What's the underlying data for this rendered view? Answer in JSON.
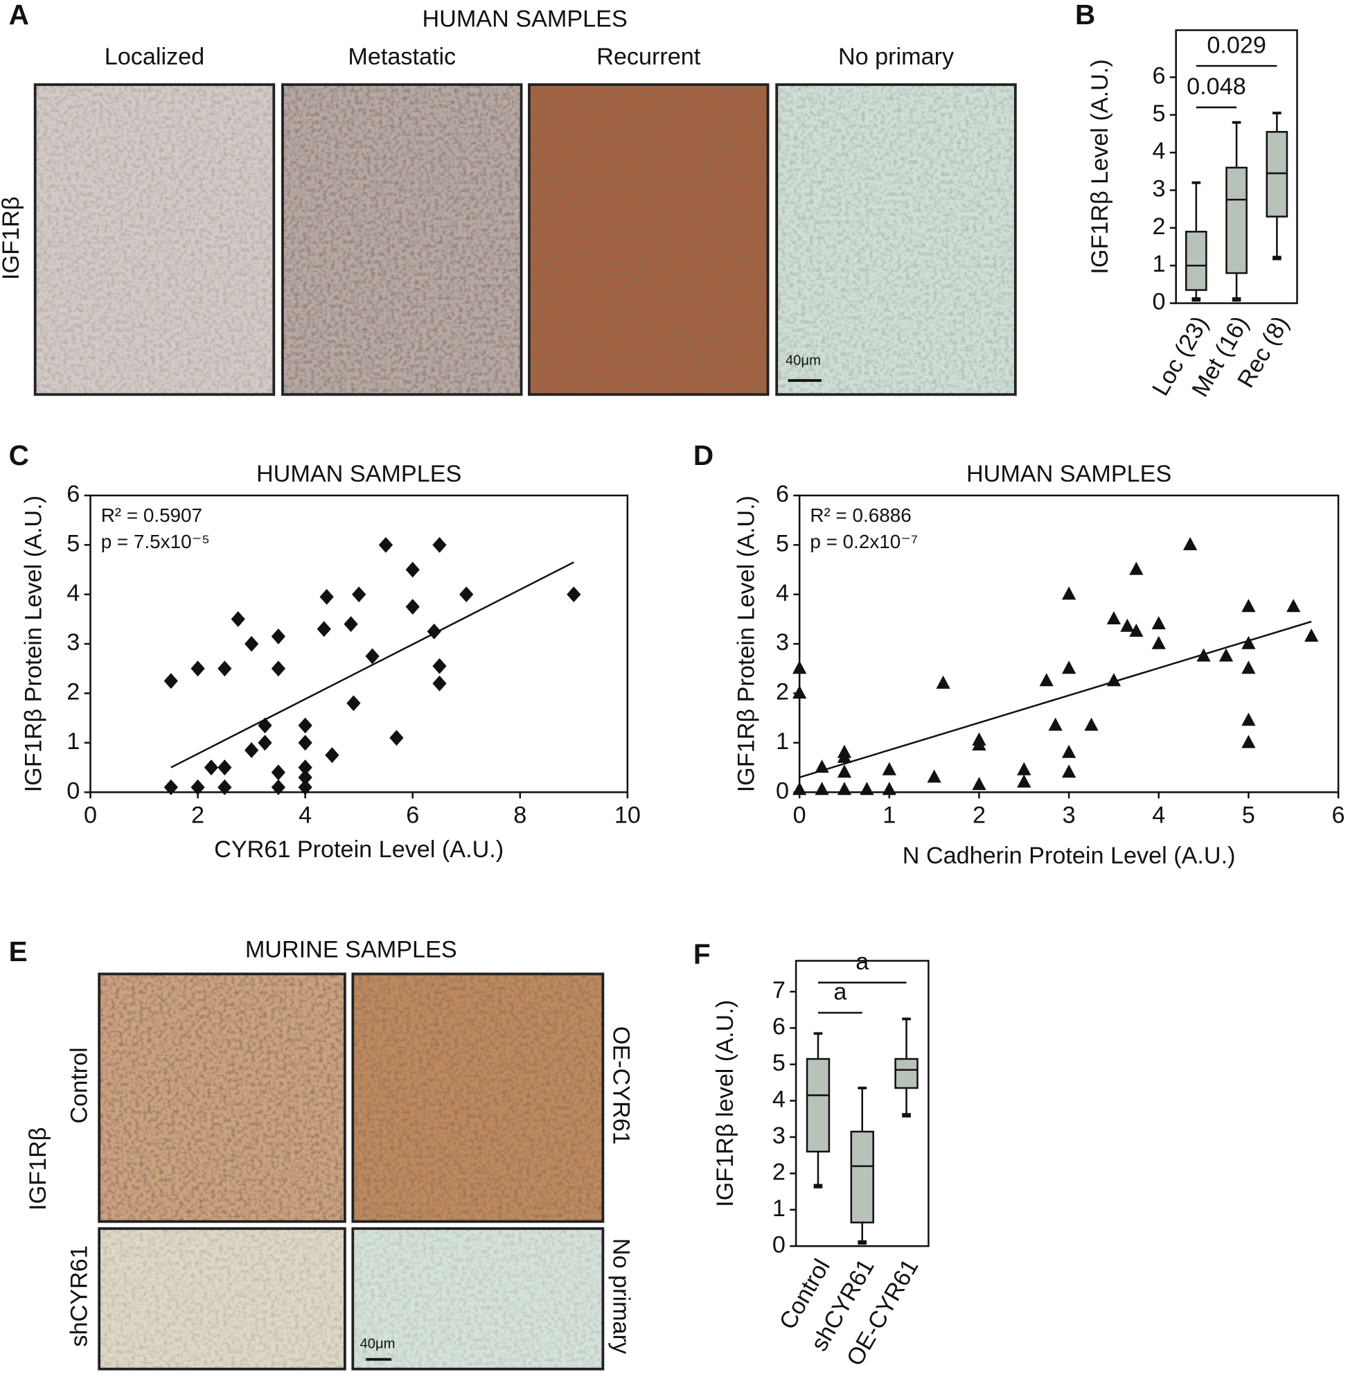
{
  "panel_A": {
    "letter": "A",
    "title": "HUMAN SAMPLES",
    "row_label": "IGF1Rβ",
    "images": [
      "Localized",
      "Metastatic",
      "Recurrent",
      "No primary"
    ],
    "scale_bar": "40μm"
  },
  "panel_E": {
    "letter": "E",
    "title": "MURINE SAMPLES",
    "row_label": "IGF1Rβ",
    "images": [
      "Control",
      "OE-CYR61",
      "shCYR61",
      "No primary"
    ],
    "scale_bar": "40μm"
  },
  "chart_data": [
    {
      "type": "box",
      "letter": "B",
      "ylabel": "IGF1Rβ Level  (A.U.)",
      "color": "#b8c2ba",
      "categories": [
        "Loc (23)",
        "Met (16)",
        "Rec (8)"
      ],
      "values": [
        [
          0.1,
          0.35,
          1.0,
          1.9,
          3.2
        ],
        [
          0.1,
          0.8,
          2.75,
          3.6,
          4.8
        ],
        [
          1.2,
          2.3,
          3.45,
          4.55,
          5.05
        ]
      ],
      "ylim": [
        0,
        7.25
      ],
      "yticks": [
        0,
        1,
        2,
        3,
        4,
        5,
        6
      ],
      "brackets": [
        {
          "from": 0,
          "to": 1,
          "y": 5.2,
          "label": "0.048"
        },
        {
          "from": 0,
          "to": 2,
          "y": 6.3,
          "label": "0.029"
        }
      ]
    },
    {
      "type": "scatter",
      "letter": "C",
      "title": "HUMAN SAMPLES",
      "xlabel": "CYR61 Protein Level (A.U.)",
      "ylabel": "IGF1Rβ Protein Level (A.U.)",
      "marker": "diamond",
      "color": "#111111",
      "annotations": [
        "R² = 0.5907",
        "p = 7.5x10⁻⁵"
      ],
      "x": [
        1.5,
        2,
        2.5,
        2.75,
        3,
        3.5,
        3.5,
        1.5,
        2,
        2.25,
        2.5,
        2.5,
        3,
        3.25,
        3.25,
        3.5,
        3.5,
        4,
        4,
        4,
        4,
        4,
        4.5,
        4.35,
        4.4,
        4.85,
        5,
        4.9,
        5.25,
        5.5,
        6,
        6,
        6.5,
        6.4,
        6.5,
        6.5,
        7,
        5.7,
        9
      ],
      "values": [
        2.25,
        2.5,
        2.5,
        3.5,
        3,
        3.15,
        2.5,
        0.1,
        0.1,
        0.5,
        0.5,
        0.1,
        0.85,
        1.0,
        1.35,
        0.4,
        0.1,
        1.35,
        1.0,
        0.5,
        0.3,
        0.1,
        0.75,
        3.3,
        3.95,
        3.4,
        4.0,
        1.8,
        2.75,
        5.0,
        4.5,
        3.75,
        5.0,
        3.25,
        2.55,
        2.2,
        4.0,
        1.1,
        4.0
      ],
      "trendline": {
        "x": [
          1.5,
          9
        ],
        "values": [
          0.5,
          4.65
        ]
      },
      "xlim": [
        0,
        10
      ],
      "xticks": [
        0,
        2,
        4,
        6,
        8,
        10
      ],
      "ylim": [
        0,
        6
      ],
      "yticks": [
        0,
        1,
        2,
        3,
        4,
        5,
        6
      ]
    },
    {
      "type": "scatter",
      "letter": "D",
      "title": "HUMAN SAMPLES",
      "xlabel": "N Cadherin Protein Level (A.U.)",
      "ylabel": "IGF1Rβ Protein Level (A.U.)",
      "marker": "triangle",
      "color": "#111111",
      "annotations": [
        "R² = 0.6886",
        "p = 0.2x10⁻⁷"
      ],
      "x": [
        0,
        0,
        0,
        0.25,
        0.25,
        0.5,
        0.5,
        0.5,
        0.5,
        0.75,
        1,
        1,
        1.5,
        1.6,
        2,
        2,
        2,
        2.5,
        2.5,
        2.75,
        2.85,
        3,
        3,
        3,
        3,
        3.25,
        3.5,
        3.5,
        3.65,
        3.75,
        3.75,
        4,
        4,
        4.35,
        4.5,
        4.75,
        5,
        5,
        5,
        5,
        5,
        5.5,
        5.7
      ],
      "values": [
        2.5,
        2.0,
        0.05,
        0.5,
        0.05,
        0.8,
        0.7,
        0.4,
        0.05,
        0.05,
        0.45,
        0.05,
        0.3,
        2.2,
        1.05,
        0.95,
        0.15,
        0.45,
        0.2,
        2.25,
        1.35,
        4.0,
        2.5,
        0.8,
        0.4,
        1.35,
        3.5,
        2.25,
        3.35,
        4.5,
        3.25,
        3.4,
        3.0,
        5.0,
        2.75,
        2.75,
        3.75,
        3.0,
        2.5,
        1.45,
        1.0,
        3.75,
        3.15
      ],
      "trendline": {
        "x": [
          0,
          5.7
        ],
        "values": [
          0.3,
          3.45
        ]
      },
      "xlim": [
        0,
        6
      ],
      "xticks": [
        0,
        1,
        2,
        3,
        4,
        5,
        6
      ],
      "ylim": [
        0,
        6
      ],
      "yticks": [
        0,
        1,
        2,
        3,
        4,
        5,
        6
      ]
    },
    {
      "type": "box",
      "letter": "F",
      "ylabel": "IGF1Rβ level (A.U.)",
      "color": "#b8c2ba",
      "categories": [
        "Control",
        "shCYR61",
        "OE-CYR61"
      ],
      "values": [
        [
          1.65,
          2.6,
          4.15,
          5.15,
          5.85
        ],
        [
          0.1,
          0.65,
          2.2,
          3.15,
          4.35
        ],
        [
          3.6,
          4.35,
          4.85,
          5.15,
          6.25
        ]
      ],
      "ylim": [
        0,
        7.85
      ],
      "yticks": [
        0,
        1,
        2,
        3,
        4,
        5,
        6,
        7
      ],
      "brackets": [
        {
          "from": 0,
          "to": 1,
          "y": 6.42,
          "label": "a"
        },
        {
          "from": 0,
          "to": 2,
          "y": 7.25,
          "label": "a"
        }
      ]
    }
  ]
}
